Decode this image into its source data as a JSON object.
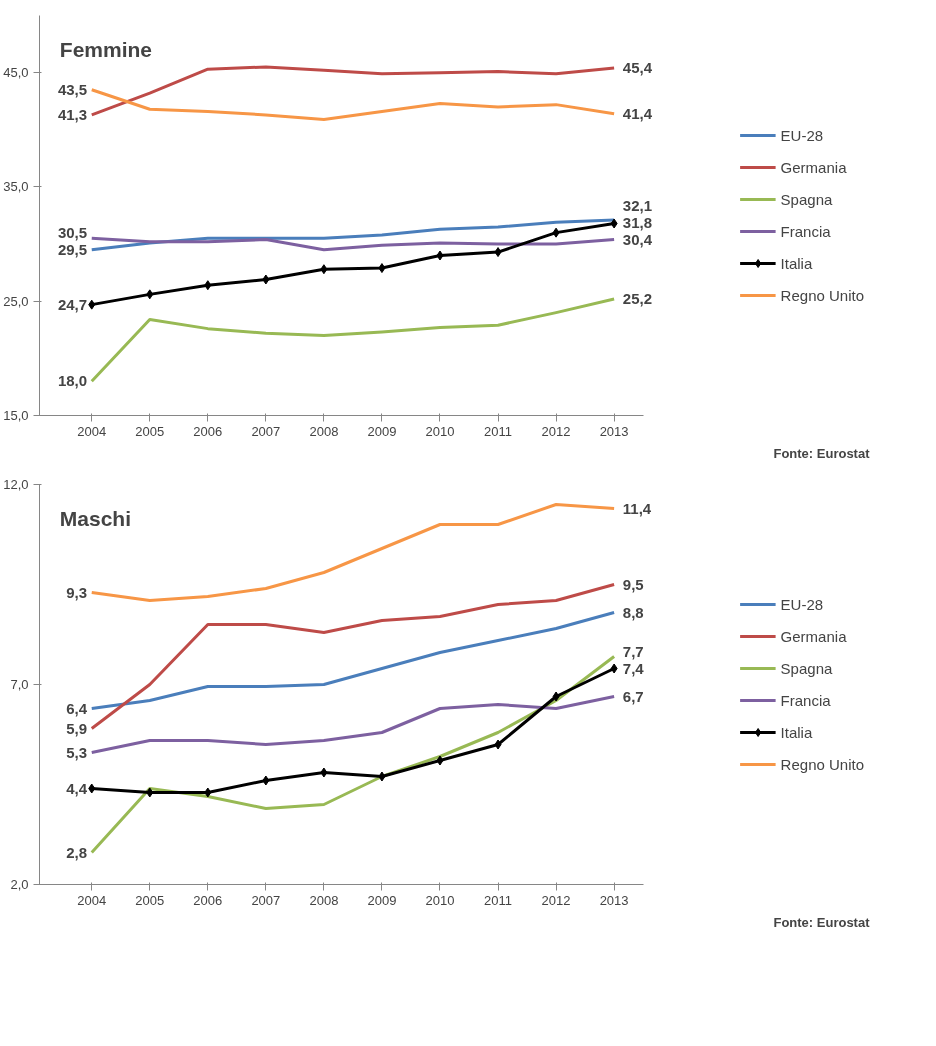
{
  "chart_data": [
    {
      "type": "line",
      "title": "Femmine",
      "categories": [
        "2004",
        "2005",
        "2006",
        "2007",
        "2008",
        "2009",
        "2010",
        "2011",
        "2012",
        "2013"
      ],
      "ylim": [
        15,
        50
      ],
      "yticks": [
        {
          "value": 15,
          "label": "15,0"
        },
        {
          "value": 25,
          "label": "25,0"
        },
        {
          "value": 35,
          "label": "35,0"
        },
        {
          "value": 45,
          "label": "45,0"
        }
      ],
      "grid": false,
      "legend": "right",
      "annotations": [
        "Fonte: Eurostat"
      ],
      "series": [
        {
          "name": "EU-28",
          "color": "#4a7ebb",
          "marker": "none",
          "values": [
            29.5,
            30.1,
            30.5,
            30.5,
            30.5,
            30.8,
            31.3,
            31.5,
            31.9,
            32.1
          ],
          "value_labels": [
            "29,5",
            null,
            null,
            null,
            null,
            null,
            null,
            null,
            null,
            "32,1"
          ]
        },
        {
          "name": "Germania",
          "color": "#be4b48",
          "marker": "none",
          "values": [
            41.3,
            43.2,
            45.3,
            45.5,
            45.2,
            44.9,
            45.0,
            45.1,
            44.9,
            45.4
          ],
          "value_labels": [
            "41,3",
            null,
            null,
            null,
            null,
            null,
            null,
            null,
            null,
            "45,4"
          ]
        },
        {
          "name": "Spagna",
          "color": "#98b954",
          "marker": "none",
          "values": [
            18.0,
            23.4,
            22.6,
            22.2,
            22.0,
            22.3,
            22.7,
            22.9,
            24.0,
            25.2
          ],
          "value_labels": [
            "18,0",
            null,
            null,
            null,
            null,
            null,
            null,
            null,
            null,
            "25,2"
          ]
        },
        {
          "name": "Francia",
          "color": "#7d60a0",
          "marker": "none",
          "values": [
            30.5,
            30.2,
            30.2,
            30.4,
            29.5,
            29.9,
            30.1,
            30.0,
            30.0,
            30.4
          ],
          "value_labels": [
            "30,5",
            null,
            null,
            null,
            null,
            null,
            null,
            null,
            null,
            "30,4"
          ]
        },
        {
          "name": "Italia",
          "color": "#000000",
          "marker": "diamond",
          "values": [
            24.7,
            25.6,
            26.4,
            26.9,
            27.8,
            27.9,
            29.0,
            29.3,
            31.0,
            31.8
          ],
          "value_labels": [
            "24,7",
            null,
            null,
            null,
            null,
            null,
            null,
            null,
            null,
            "31,8"
          ]
        },
        {
          "name": "Regno Unito",
          "color": "#f79646",
          "marker": "none",
          "values": [
            43.5,
            41.8,
            41.6,
            41.3,
            40.9,
            41.6,
            42.3,
            42.0,
            42.2,
            41.4
          ],
          "value_labels": [
            "43,5",
            null,
            null,
            null,
            null,
            null,
            null,
            null,
            null,
            "41,4"
          ]
        }
      ]
    },
    {
      "type": "line",
      "title": "Maschi",
      "categories": [
        "2004",
        "2005",
        "2006",
        "2007",
        "2008",
        "2009",
        "2010",
        "2011",
        "2012",
        "2013"
      ],
      "ylim": [
        2,
        12
      ],
      "yticks": [
        {
          "value": 2,
          "label": "2,0"
        },
        {
          "value": 7,
          "label": "7,0"
        },
        {
          "value": 12,
          "label": "12,0"
        }
      ],
      "grid": false,
      "legend": "right",
      "annotations": [
        "Fonte: Eurostat"
      ],
      "series": [
        {
          "name": "EU-28",
          "color": "#4a7ebb",
          "marker": "none",
          "values": [
            6.4,
            6.6,
            6.95,
            6.95,
            7.0,
            7.4,
            7.8,
            8.1,
            8.4,
            8.8
          ],
          "value_labels": [
            "6,4",
            null,
            null,
            null,
            null,
            null,
            null,
            null,
            null,
            "8,8"
          ]
        },
        {
          "name": "Germania",
          "color": "#be4b48",
          "marker": "none",
          "values": [
            5.9,
            7.0,
            8.5,
            8.5,
            8.3,
            8.6,
            8.7,
            9.0,
            9.1,
            9.5
          ],
          "value_labels": [
            "5,9",
            null,
            null,
            null,
            null,
            null,
            null,
            null,
            null,
            "9,5"
          ]
        },
        {
          "name": "Spagna",
          "color": "#98b954",
          "marker": "none",
          "values": [
            2.8,
            4.4,
            4.2,
            3.9,
            4.0,
            4.7,
            5.2,
            5.8,
            6.6,
            7.7
          ],
          "value_labels": [
            "2,8",
            null,
            null,
            null,
            null,
            null,
            null,
            null,
            null,
            "7,7"
          ]
        },
        {
          "name": "Francia",
          "color": "#7d60a0",
          "marker": "none",
          "values": [
            5.3,
            5.6,
            5.6,
            5.5,
            5.6,
            5.8,
            6.4,
            6.5,
            6.4,
            6.7
          ],
          "value_labels": [
            "5,3",
            null,
            null,
            null,
            null,
            null,
            null,
            null,
            null,
            "6,7"
          ]
        },
        {
          "name": "Italia",
          "color": "#000000",
          "marker": "diamond",
          "values": [
            4.4,
            4.3,
            4.3,
            4.6,
            4.8,
            4.7,
            5.1,
            5.5,
            6.7,
            7.4
          ],
          "value_labels": [
            "4,4",
            null,
            null,
            null,
            null,
            null,
            null,
            null,
            null,
            "7,4"
          ]
        },
        {
          "name": "Regno Unito",
          "color": "#f79646",
          "marker": "none",
          "values": [
            9.3,
            9.1,
            9.2,
            9.4,
            9.8,
            10.4,
            11.0,
            11.0,
            11.5,
            11.4
          ],
          "value_labels": [
            "9,3",
            null,
            null,
            null,
            null,
            null,
            null,
            null,
            null,
            "11,4"
          ]
        }
      ]
    }
  ]
}
